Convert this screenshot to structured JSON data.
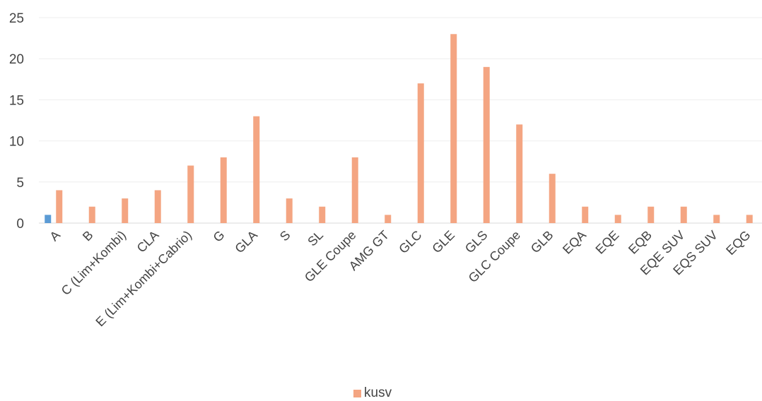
{
  "chart_data": {
    "type": "bar",
    "categories": [
      "A",
      "B",
      "C (Lim+Kombi)",
      "CLA",
      "E (Lim+Kombi+Cabrio)",
      "G",
      "GLA",
      "S",
      "SL",
      "GLE Coupe",
      "AMG GT",
      "GLC",
      "GLE",
      "GLS",
      "GLC Coupe",
      "GLB",
      "EQA",
      "EQE",
      "EQB",
      "EQE SUV",
      "EQS SUV",
      "EQG"
    ],
    "series": [
      {
        "name": "",
        "color": "#5b9bd5",
        "values": [
          1,
          0,
          0,
          0,
          0,
          0,
          0,
          0,
          0,
          0,
          0,
          0,
          0,
          0,
          0,
          0,
          0,
          0,
          0,
          0,
          0,
          0
        ]
      },
      {
        "name": "kusv",
        "color": "#f4a582",
        "values": [
          4,
          2,
          3,
          4,
          7,
          8,
          13,
          3,
          2,
          8,
          1,
          17,
          23,
          19,
          12,
          6,
          2,
          1,
          2,
          2,
          1,
          1
        ]
      }
    ],
    "ylim": [
      0,
      25
    ],
    "yticks": [
      0,
      5,
      10,
      15,
      20,
      25
    ],
    "grid": true,
    "legend_position": "bottom",
    "legend_label": "kusv",
    "title": "",
    "xlabel": "",
    "ylabel": ""
  }
}
